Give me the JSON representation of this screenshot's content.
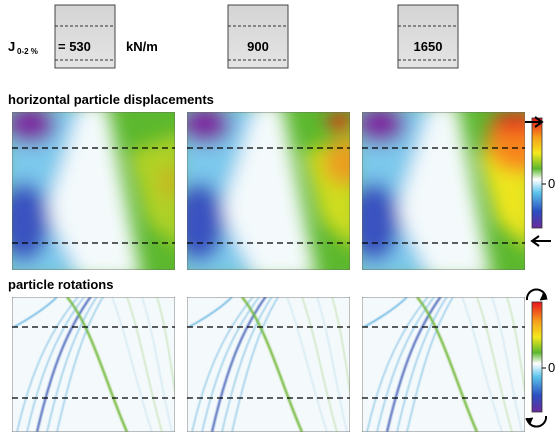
{
  "header": {
    "symbol": "J",
    "subscript": "0-2 %",
    "values": [
      "= 530",
      "900",
      "1650"
    ],
    "unit": "kN/m"
  },
  "sections": [
    {
      "title": "horizontal particle displacements",
      "scale_label": "0"
    },
    {
      "title": "particle rotations",
      "scale_label": "0"
    }
  ]
}
